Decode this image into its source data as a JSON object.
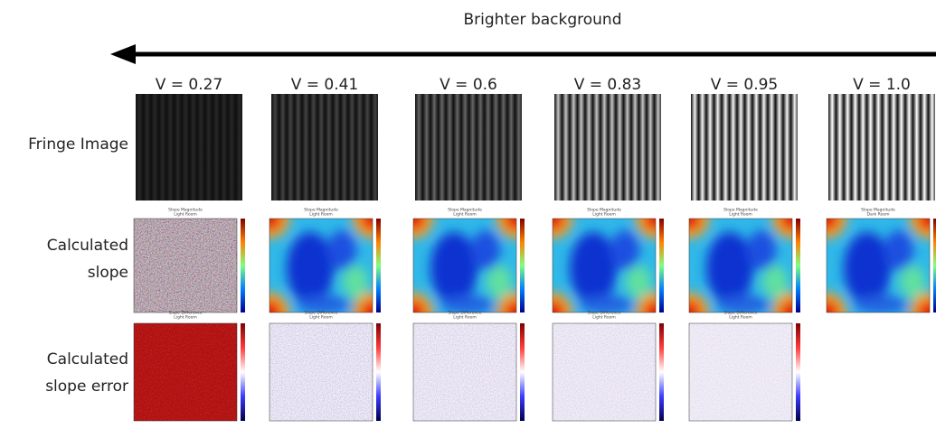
{
  "header": {
    "title": "Brighter background"
  },
  "rows": [
    [
      "Fringe Image"
    ],
    [
      "Calculated",
      "slope"
    ],
    [
      "Calculated",
      "slope error"
    ]
  ],
  "columns": [
    {
      "label": "V = 0.27",
      "slope_title": [
        "Slope Magnitude",
        "Light Room"
      ],
      "error_title": [
        "Slope Difference",
        "Light Room"
      ]
    },
    {
      "label": "V = 0.41",
      "slope_title": [
        "Slope Magnitude",
        "Light Room"
      ],
      "error_title": [
        "Slope Difference",
        "Light Room"
      ]
    },
    {
      "label": "V = 0.6",
      "slope_title": [
        "Slope Magnitude",
        "Light Room"
      ],
      "error_title": [
        "Slope Difference",
        "Light Room"
      ]
    },
    {
      "label": "V = 0.83",
      "slope_title": [
        "Slope Magnitude",
        "Light Room"
      ],
      "error_title": [
        "Slope Difference",
        "Light Room"
      ]
    },
    {
      "label": "V = 0.95",
      "slope_title": [
        "Slope Magnitude",
        "Light Room"
      ],
      "error_title": [
        "Slope Difference",
        "Light Room"
      ]
    },
    {
      "label": "V = 1.0",
      "slope_title": [
        "Slope Magnitude",
        "Dark Room"
      ]
    }
  ]
}
